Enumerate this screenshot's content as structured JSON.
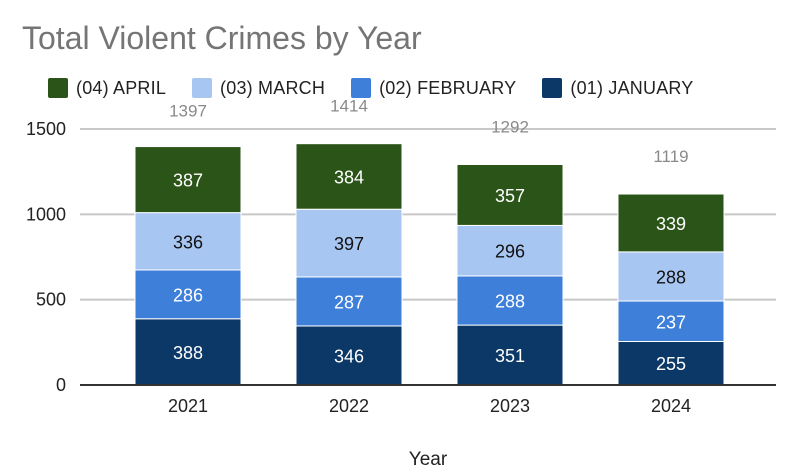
{
  "chart_data": {
    "type": "bar",
    "stacked": true,
    "title": "Total Violent Crimes by Year",
    "xlabel": "Year",
    "ylabel": "",
    "categories": [
      "2021",
      "2022",
      "2023",
      "2024"
    ],
    "ylim": [
      0,
      1500
    ],
    "yticks": [
      0,
      500,
      1000,
      1500
    ],
    "grid": true,
    "legend_position": "top",
    "series": [
      {
        "name": "(01) JANUARY",
        "values": [
          388,
          346,
          351,
          255
        ],
        "color": "#0b3866",
        "label_color": "#ffffff"
      },
      {
        "name": "(02) FEBRUARY",
        "values": [
          286,
          287,
          288,
          237
        ],
        "color": "#3d7fd9",
        "label_color": "#ffffff"
      },
      {
        "name": "(03) MARCH",
        "values": [
          336,
          397,
          296,
          288
        ],
        "color": "#a8c6f2",
        "label_color": "#111111"
      },
      {
        "name": "(04) APRIL",
        "values": [
          387,
          384,
          357,
          339
        ],
        "color": "#2b5518",
        "label_color": "#ffffff"
      }
    ],
    "legend_order": [
      "(04) APRIL",
      "(03) MARCH",
      "(02) FEBRUARY",
      "(01) JANUARY"
    ],
    "totals": [
      1397,
      1414,
      1292,
      1119
    ]
  }
}
